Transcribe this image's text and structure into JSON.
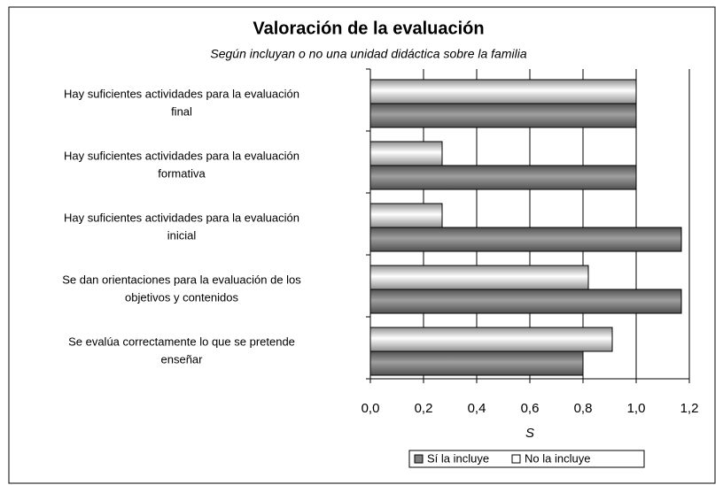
{
  "chart_data": {
    "type": "barh",
    "title": "Valoración de la evaluación",
    "subtitle": "Según incluyan o no una unidad didáctica sobre la familia",
    "x_label": "S",
    "categories": [
      [
        "Hay suficientes actividades para la evaluación",
        "final"
      ],
      [
        "Hay suficientes actividades para la evaluación",
        "formativa"
      ],
      [
        "Hay suficientes actividades para la evaluación",
        "inicial"
      ],
      [
        "Se dan orientaciones para la evaluación de los",
        "objetivos y contenidos"
      ],
      [
        "Se evalúa correctamente lo que se pretende",
        "enseñar"
      ]
    ],
    "series": [
      {
        "name": "Sí la incluye",
        "color": "#808080",
        "values": [
          1.0,
          1.0,
          1.17,
          1.17,
          0.8
        ]
      },
      {
        "name": "No la incluye",
        "color": "#ffffff",
        "values": [
          1.0,
          0.27,
          0.27,
          0.82,
          0.91
        ]
      }
    ],
    "xlim": [
      0,
      1.2
    ],
    "xticks": [
      {
        "value": 0,
        "label": "0,0"
      },
      {
        "value": 0.2,
        "label": "0,2"
      },
      {
        "value": 0.4,
        "label": "0,4"
      },
      {
        "value": 0.6,
        "label": "0,6"
      },
      {
        "value": 0.8,
        "label": "0,8"
      },
      {
        "value": 1.0,
        "label": "1,0"
      },
      {
        "value": 1.2,
        "label": "1,2"
      }
    ],
    "grid": true,
    "legend": "bottom"
  }
}
